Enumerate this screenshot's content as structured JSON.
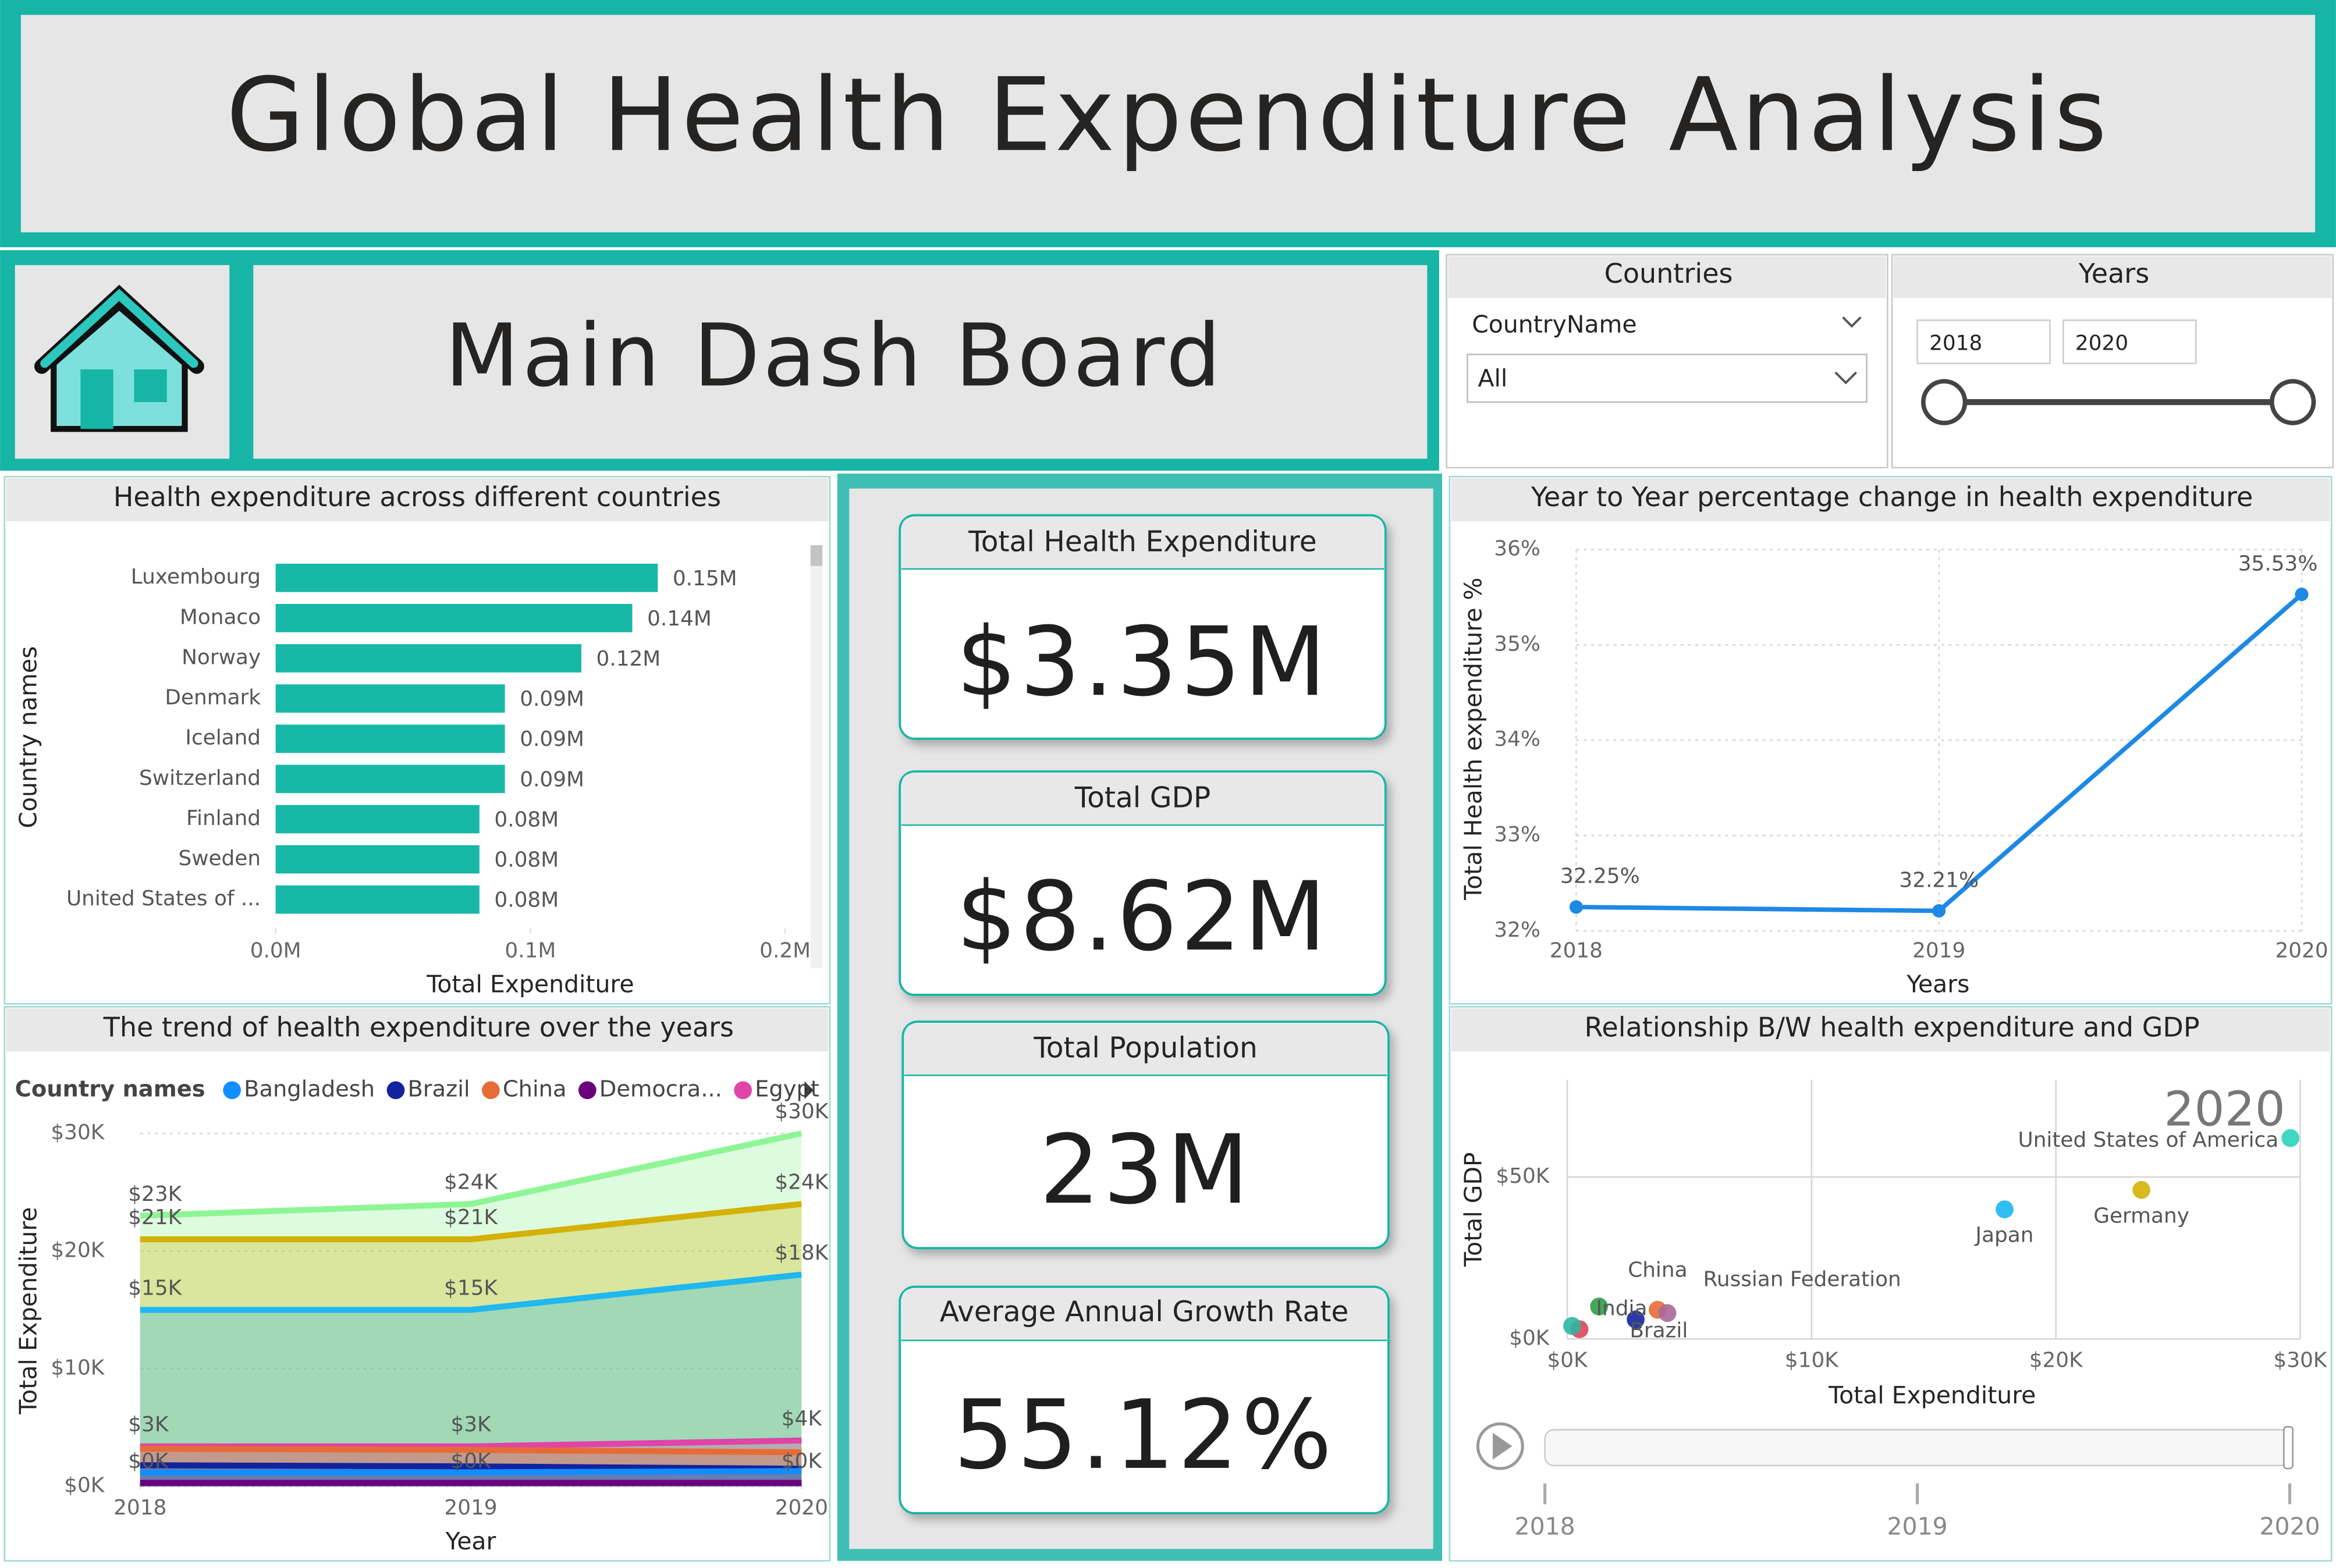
{
  "header": {
    "title": "Global Health Expenditure Analysis",
    "subtitle": "Main Dash Board"
  },
  "slicers": {
    "countries": {
      "title": "Countries",
      "field": "CountryName",
      "value": "All"
    },
    "years": {
      "title": "Years",
      "from": "2018",
      "to": "2020"
    }
  },
  "kpis": [
    {
      "label": "Total Health Expenditure",
      "value": "$3.35M"
    },
    {
      "label": "Total GDP",
      "value": "$8.62M"
    },
    {
      "label": "Total Population",
      "value": "23M"
    },
    {
      "label": "Average Annual Growth Rate",
      "value": "55.12%"
    }
  ],
  "chart_data": [
    {
      "type": "bar",
      "orientation": "horizontal",
      "title": "Health expenditure across different countries",
      "xlabel": "Total Expenditure",
      "ylabel": "Country names",
      "categories": [
        "Luxembourg",
        "Monaco",
        "Norway",
        "Denmark",
        "Iceland",
        "Switzerland",
        "Finland",
        "Sweden",
        "United States of ..."
      ],
      "values": [
        0.15,
        0.14,
        0.12,
        0.09,
        0.09,
        0.09,
        0.08,
        0.08,
        0.08
      ],
      "value_labels": [
        "0.15M",
        "0.14M",
        "0.12M",
        "0.09M",
        "0.09M",
        "0.09M",
        "0.08M",
        "0.08M",
        "0.08M"
      ],
      "color": "#17b8a6",
      "xlim": [
        0,
        0.2
      ],
      "xticks": [
        {
          "value": 0,
          "label": "0.0M"
        },
        {
          "value": 0.1,
          "label": "0.1M"
        },
        {
          "value": 0.2,
          "label": "0.2M"
        }
      ]
    },
    {
      "type": "line",
      "title": "Year to Year percentage change in health expenditure",
      "xlabel": "Years",
      "ylabel": "Total Health expenditure %",
      "x": [
        2018,
        2019,
        2020
      ],
      "values": [
        32.25,
        32.21,
        35.53
      ],
      "value_labels": [
        "32.25%",
        "32.21%",
        "35.53%"
      ],
      "color": "#1e88e5",
      "xlim": [
        2018,
        2020
      ],
      "xticks": [
        2018,
        2019,
        2020
      ],
      "ylim": [
        32,
        36
      ],
      "yticks": [
        {
          "value": 32,
          "label": "32%"
        },
        {
          "value": 33,
          "label": "33%"
        },
        {
          "value": 34,
          "label": "34%"
        },
        {
          "value": 35,
          "label": "35%"
        },
        {
          "value": 36,
          "label": "36%"
        }
      ],
      "grid": true
    },
    {
      "type": "area",
      "title": "The trend of health expenditure over the years",
      "xlabel": "Year",
      "ylabel": "Total Expenditure",
      "legend_title": "Country names",
      "x": [
        2018,
        2019,
        2020
      ],
      "series": [
        {
          "name": "Bangladesh",
          "color": "#118dff",
          "values": [
            1.2,
            1.2,
            1.3
          ]
        },
        {
          "name": "Brazil",
          "color": "#12239e",
          "values": [
            1.8,
            1.7,
            1.5
          ]
        },
        {
          "name": "China",
          "color": "#e66c37",
          "values": [
            3.2,
            3.1,
            2.9
          ]
        },
        {
          "name": "Democra...",
          "color": "#6b007b",
          "values": [
            0.3,
            0.3,
            0.3
          ],
          "value_labels": [
            "$0K",
            "$0K",
            "$0K"
          ]
        },
        {
          "name": "Egypt",
          "color": "#e044a7",
          "values": [
            3.4,
            3.4,
            3.9
          ],
          "value_labels": [
            "$3K",
            "$3K",
            "$4K"
          ]
        },
        {
          "color": "#1fb8f0",
          "values": [
            15,
            15,
            18
          ],
          "value_labels": [
            "$15K",
            "$15K",
            "$18K"
          ]
        },
        {
          "color": "#d4b106",
          "values": [
            21,
            21,
            24
          ],
          "value_labels": [
            "$21K",
            "$21K",
            "$24K"
          ]
        },
        {
          "color": "#8ef595",
          "values": [
            23,
            24,
            30
          ],
          "value_labels": [
            "$23K",
            "$24K",
            "$30K"
          ]
        }
      ],
      "xlim": [
        2018,
        2020
      ],
      "xticks": [
        2018,
        2019,
        2020
      ],
      "ylim": [
        0,
        30
      ],
      "yticks": [
        {
          "value": 0,
          "label": "$0K"
        },
        {
          "value": 10,
          "label": "$10K"
        },
        {
          "value": 20,
          "label": "$20K"
        },
        {
          "value": 30,
          "label": "$30K"
        }
      ],
      "grid": true
    },
    {
      "type": "scatter",
      "title": "Relationship B/W health expenditure and GDP",
      "xlabel": "Total Expenditure",
      "ylabel": "Total GDP",
      "x": [
        29.6,
        23.5,
        17.9,
        3.7,
        4.1,
        1.3,
        2.8,
        0.5,
        0.2
      ],
      "values": [
        62,
        46,
        40,
        9,
        8,
        10,
        6,
        3,
        4
      ],
      "labels": [
        "United States of America",
        "Germany",
        "Japan",
        "China",
        "Russian Federation",
        "India",
        "Brazil",
        null,
        null
      ],
      "colors": [
        "#2bd4bd",
        "#d4b106",
        "#1ab6f0",
        "#e66c37",
        "#a66999",
        "#2e9e48",
        "#12239e",
        "#e0445a",
        "#2bb8a0"
      ],
      "xlim": [
        0,
        30
      ],
      "xticks": [
        {
          "value": 0,
          "label": "$0K"
        },
        {
          "value": 10,
          "label": "$10K"
        },
        {
          "value": 20,
          "label": "$20K"
        },
        {
          "value": 30,
          "label": "$30K"
        }
      ],
      "ylim": [
        0,
        80
      ],
      "yticks": [
        {
          "value": 0,
          "label": "$0K"
        },
        {
          "value": 50,
          "label": "$50K"
        }
      ],
      "grid": true,
      "play_axis": {
        "frame": "2020",
        "ticks": [
          "2018",
          "2019",
          "2020"
        ]
      }
    }
  ]
}
